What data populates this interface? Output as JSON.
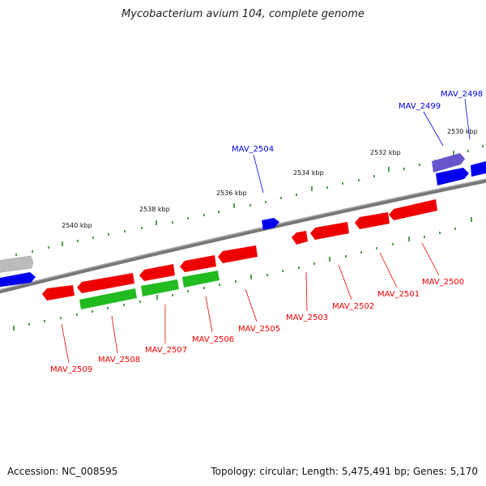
{
  "title": "Mycobacterium avium 104, complete genome",
  "footer": {
    "accession": "Accession: NC_008595",
    "stats": "Topology: circular; Length: 5,475,491 bp; Genes: 5,170"
  },
  "colors": {
    "backbone": "#8a8a8a",
    "forward_gene": "#0000ee",
    "reverse_gene": "#ee0000",
    "forward_rna": "#6655cc",
    "reverse_rna": "#22bb22",
    "other_feature": "#bbbbbb",
    "tick": "#228822"
  },
  "scale_labels": [
    "2530 kbp",
    "2532 kbp",
    "2534 kbp",
    "2536 kbp",
    "2538 kbp",
    "2540 kbp"
  ],
  "genes": [
    {
      "name": "MAV_2498",
      "strand": "forward"
    },
    {
      "name": "MAV_2499",
      "strand": "forward"
    },
    {
      "name": "MAV_2500",
      "strand": "reverse"
    },
    {
      "name": "MAV_2501",
      "strand": "reverse"
    },
    {
      "name": "MAV_2502",
      "strand": "reverse"
    },
    {
      "name": "MAV_2503",
      "strand": "reverse"
    },
    {
      "name": "MAV_2504",
      "strand": "forward"
    },
    {
      "name": "MAV_2505",
      "strand": "reverse"
    },
    {
      "name": "MAV_2506",
      "strand": "reverse"
    },
    {
      "name": "MAV_2507",
      "strand": "reverse"
    },
    {
      "name": "MAV_2508",
      "strand": "reverse"
    },
    {
      "name": "MAV_2509",
      "strand": "reverse"
    }
  ]
}
